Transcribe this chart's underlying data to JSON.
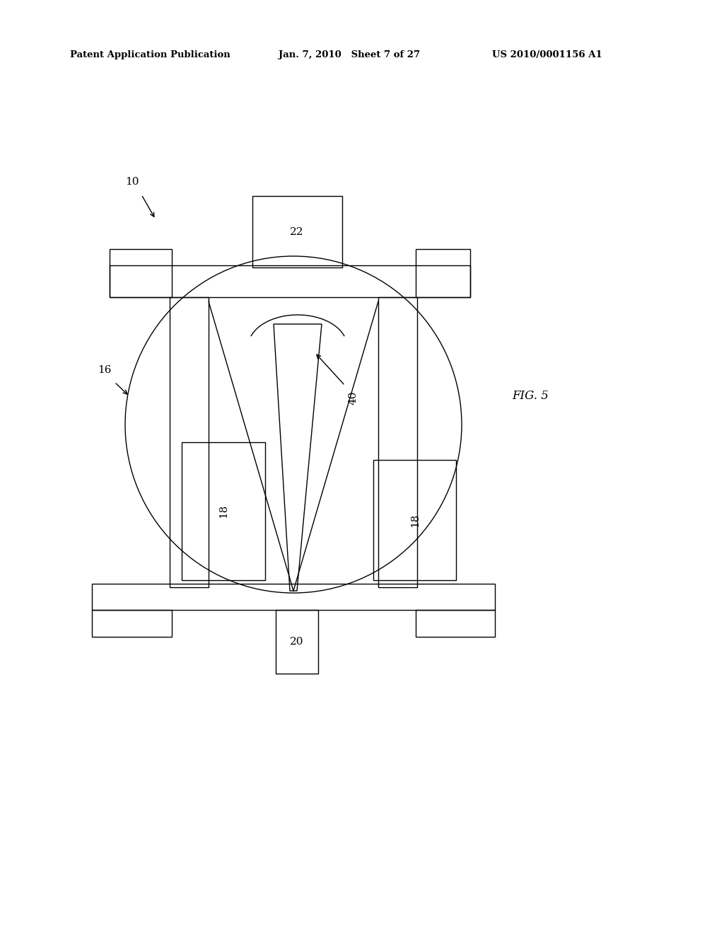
{
  "bg_color": "#ffffff",
  "line_color": "#000000",
  "header_left": "Patent Application Publication",
  "header_mid": "Jan. 7, 2010   Sheet 7 of 27",
  "header_right": "US 2010/0001156 A1",
  "fig_label": "FIG. 5",
  "lw": 1.0,
  "fs_header": 9.5,
  "fs_label": 11,
  "fs_fig": 12,
  "dpi": 100,
  "fig_w": 10.24,
  "fig_h": 13.2
}
